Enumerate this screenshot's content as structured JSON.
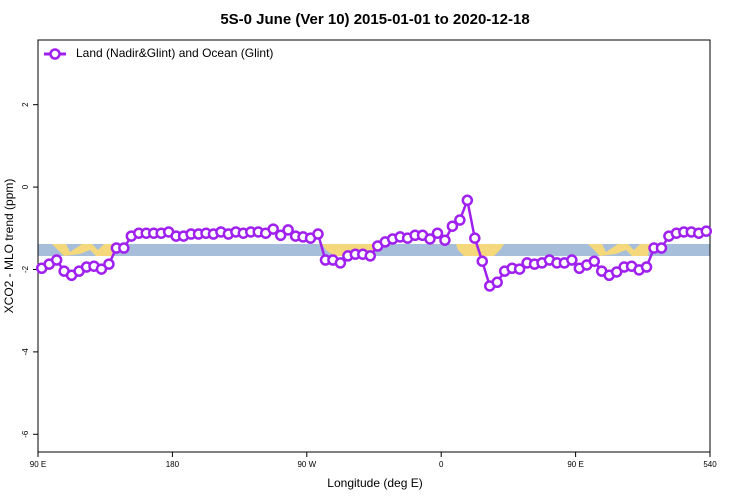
{
  "chart_data": {
    "type": "line",
    "title": "5S-0 June (Ver 10)   2015-01-01 to 2020-12-18",
    "x_label": "Longitude (deg E)",
    "y_label": "XCO2 - MLO trend (ppm)",
    "xlim": [
      90,
      540
    ],
    "ylim": [
      -6.43,
      3.57
    ],
    "xticks": [
      {
        "value": 90,
        "label": "90 E"
      },
      180,
      {
        "value": 270,
        "label": "90 W"
      },
      {
        "value": 360,
        "label": "0"
      },
      {
        "value": 450,
        "label": "90 E"
      },
      540
    ],
    "yticks": [
      -6,
      -4,
      -2,
      0,
      2
    ],
    "legend": "upper left",
    "x": [
      92.5,
      97.5,
      102.5,
      107.5,
      112.5,
      117.5,
      122.5,
      127.5,
      132.5,
      137.5,
      142.5,
      147.5,
      152.5,
      157.5,
      162.5,
      167.5,
      172.5,
      177.5,
      182.5,
      187.5,
      192.5,
      197.5,
      202.5,
      207.5,
      212.5,
      217.5,
      222.5,
      227.5,
      232.5,
      237.5,
      242.5,
      247.5,
      252.5,
      257.5,
      262.5,
      267.5,
      272.5,
      277.5,
      282.5,
      287.5,
      292.5,
      297.5,
      302.5,
      307.5,
      312.5,
      317.5,
      322.5,
      327.5,
      332.5,
      337.5,
      342.5,
      347.5,
      352.5,
      357.5,
      362.5,
      367.5,
      372.5,
      377.5,
      382.5,
      387.5,
      392.5,
      397.5,
      402.5,
      407.5,
      412.5,
      417.5,
      422.5,
      427.5,
      432.5,
      437.5,
      442.5,
      447.5,
      452.5,
      457.5,
      462.5,
      467.5,
      472.5,
      477.5,
      482.5,
      487.5,
      492.5,
      497.5,
      502.5,
      507.5,
      512.5,
      517.5,
      522.5,
      527.5,
      532.5,
      537.5
    ],
    "series": [
      {
        "name": "Land (Nadir&Glint) and Ocean (Glint)",
        "color": "#a020f0",
        "values": [
          -1.97,
          -1.87,
          -1.77,
          -2.04,
          -2.14,
          -2.04,
          -1.94,
          -1.92,
          -1.99,
          -1.87,
          -1.48,
          -1.48,
          -1.19,
          -1.12,
          -1.12,
          -1.12,
          -1.12,
          -1.09,
          -1.19,
          -1.19,
          -1.14,
          -1.14,
          -1.12,
          -1.14,
          -1.09,
          -1.14,
          -1.09,
          -1.12,
          -1.09,
          -1.09,
          -1.12,
          -1.02,
          -1.17,
          -1.04,
          -1.19,
          -1.21,
          -1.24,
          -1.14,
          -1.77,
          -1.77,
          -1.84,
          -1.67,
          -1.63,
          -1.63,
          -1.67,
          -1.43,
          -1.33,
          -1.26,
          -1.21,
          -1.24,
          -1.17,
          -1.17,
          -1.26,
          -1.12,
          -1.29,
          -0.95,
          -0.8,
          -0.32,
          -1.24,
          -1.8,
          -2.4,
          -2.31,
          -2.04,
          -1.97,
          -1.99,
          -1.84,
          -1.87,
          -1.84,
          -1.77,
          -1.84,
          -1.84,
          -1.77,
          -1.97,
          -1.89,
          -1.8,
          -2.04,
          -2.14,
          -2.06,
          -1.94,
          -1.92,
          -2.01,
          -1.94,
          -1.48,
          -1.48,
          -1.19,
          -1.12,
          -1.09,
          -1.09,
          -1.12,
          -1.07
        ]
      }
    ]
  }
}
